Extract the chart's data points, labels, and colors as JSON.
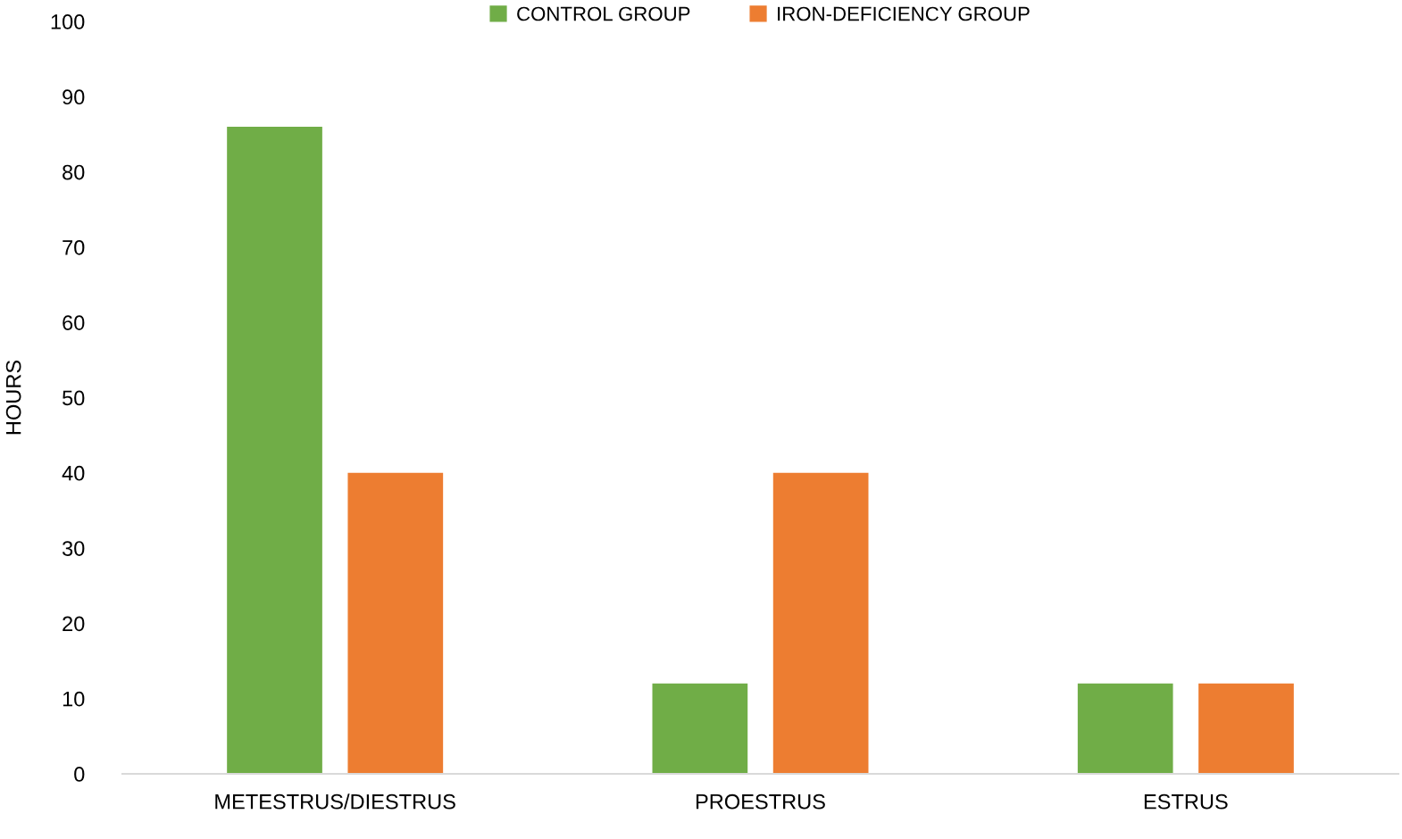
{
  "chart_data": {
    "type": "bar",
    "ylabel": "HOURS",
    "categories": [
      "METESTRUS/DIESTRUS",
      "PROESTRUS",
      "ESTRUS"
    ],
    "series": [
      {
        "name": "CONTROL GROUP",
        "color": "#70ad47",
        "values": [
          86,
          12,
          12
        ]
      },
      {
        "name": "IRON-DEFICIENCY GROUP",
        "color": "#ed7d31",
        "values": [
          40,
          40,
          12
        ]
      }
    ],
    "ylim": [
      0,
      100
    ],
    "yticks": [
      0,
      10,
      20,
      30,
      40,
      50,
      60,
      70,
      80,
      90,
      100
    ],
    "grid": false,
    "legend": "top"
  }
}
